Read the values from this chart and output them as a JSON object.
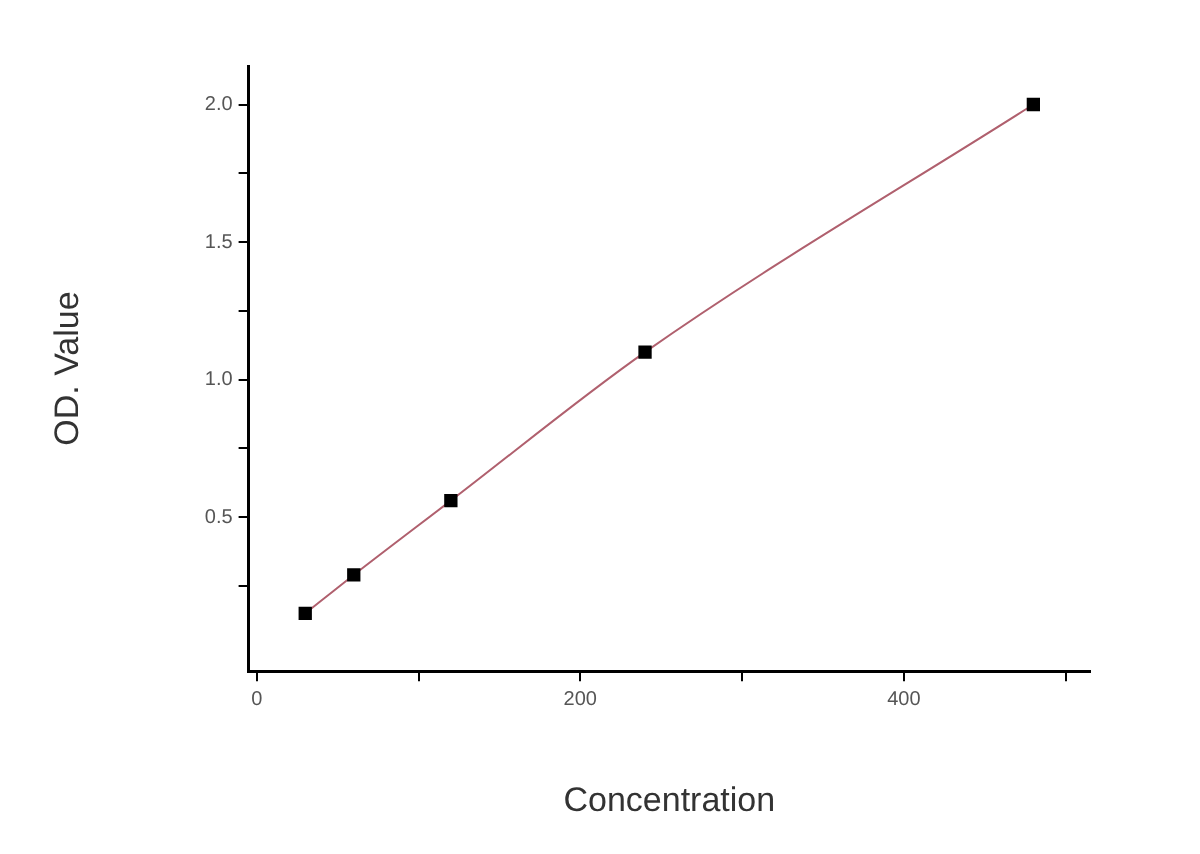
{
  "chart_data": {
    "type": "scatter",
    "xlabel": "Concentration",
    "ylabel": "OD. Value",
    "xlim": [
      -5,
      515
    ],
    "ylim": [
      -0.06,
      2.14
    ],
    "xticks": [
      0,
      {
        "value": 100,
        "label": null
      },
      200,
      {
        "value": 300,
        "label": null
      },
      400,
      {
        "value": 500,
        "label": null
      }
    ],
    "yticks": [
      {
        "value": 0.25,
        "label": null
      },
      0.5,
      {
        "value": 0.75,
        "label": null
      },
      {
        "value": 1,
        "label": "1.0"
      },
      {
        "value": 1.25,
        "label": null
      },
      1.5,
      {
        "value": 1.75,
        "label": null
      },
      {
        "value": 2,
        "label": "2.0"
      }
    ],
    "grid": false,
    "legend": false,
    "marker": "square",
    "series": [
      {
        "type": "scatter",
        "color": "#000000",
        "x": [
          30,
          60,
          120,
          240,
          480
        ],
        "values": [
          0.15,
          0.29,
          0.56,
          1.1,
          2.0
        ]
      },
      {
        "type": "line",
        "color": "#b0606e",
        "marker": "none",
        "x": [
          30,
          60,
          120,
          240,
          480
        ],
        "values": [
          0.15,
          0.29,
          0.56,
          1.1,
          2.0
        ]
      }
    ]
  }
}
